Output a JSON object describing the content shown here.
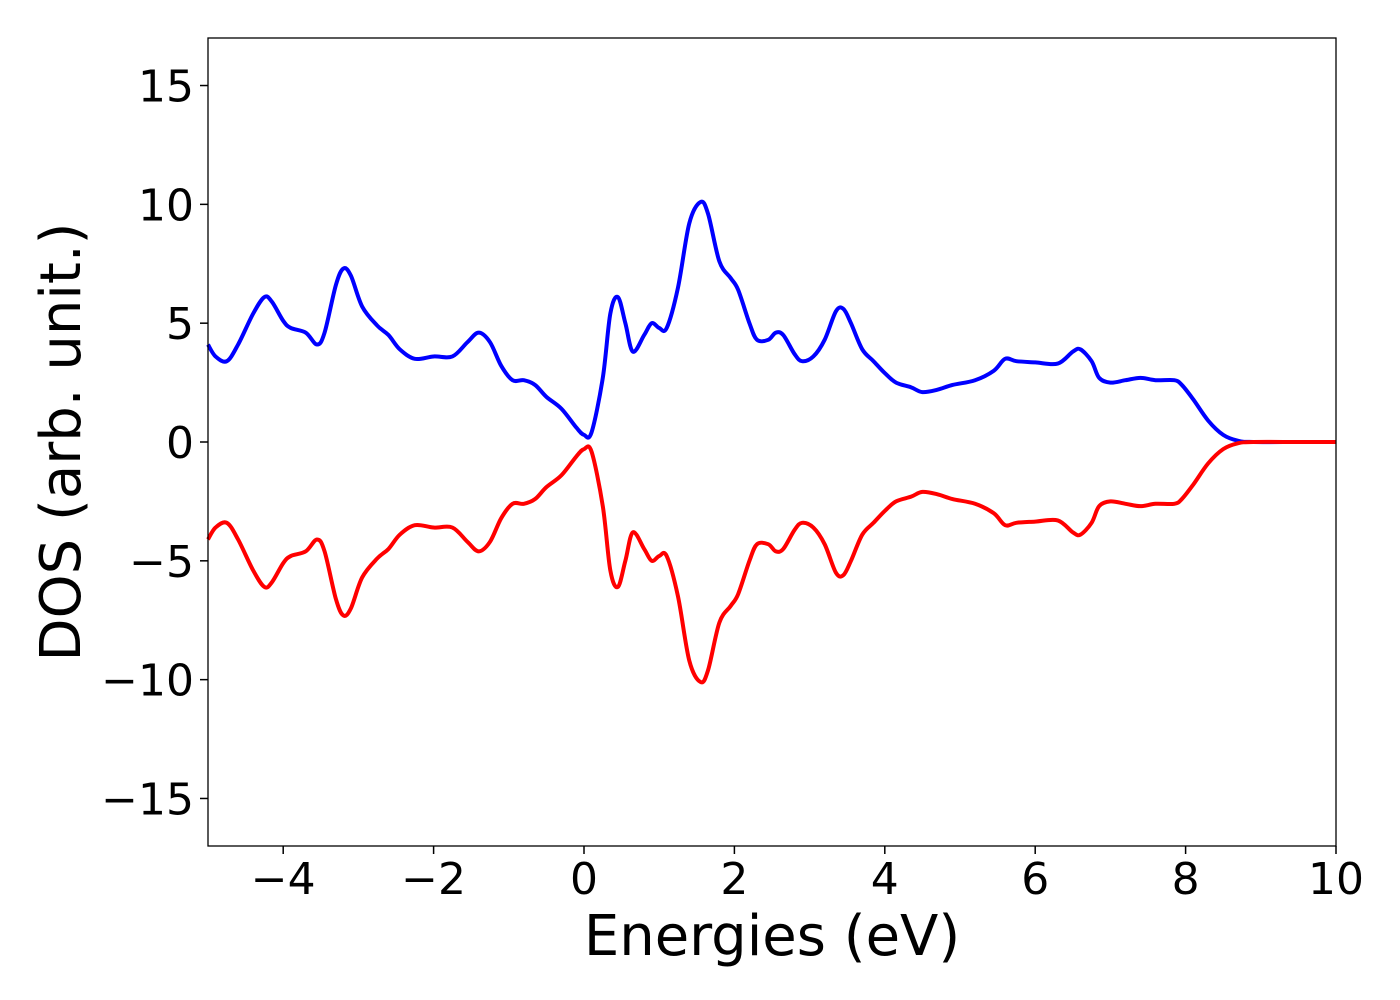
{
  "chart_data": {
    "type": "line",
    "title": "",
    "xlabel": "Energies (eV)",
    "ylabel": "DOS (arb. unit.)",
    "xlim": [
      -5,
      10
    ],
    "ylim": [
      -17,
      17
    ],
    "x_ticks": [
      -4,
      -2,
      0,
      2,
      4,
      6,
      8,
      10
    ],
    "y_ticks": [
      -15,
      -10,
      -5,
      0,
      5,
      10,
      15
    ],
    "x_tick_labels": [
      "−4",
      "−2",
      "0",
      "2",
      "4",
      "6",
      "8",
      "10"
    ],
    "y_tick_labels": [
      "−15",
      "−10",
      "−5",
      "0",
      "5",
      "10",
      "15"
    ],
    "grid": false,
    "legend": "none",
    "series": [
      {
        "color": "#0000ff",
        "points": [
          [
            -5.0,
            4.1
          ],
          [
            -4.9,
            3.6
          ],
          [
            -4.75,
            3.4
          ],
          [
            -4.6,
            4.1
          ],
          [
            -4.4,
            5.4
          ],
          [
            -4.25,
            6.1
          ],
          [
            -4.15,
            5.9
          ],
          [
            -4.0,
            5.1
          ],
          [
            -3.9,
            4.8
          ],
          [
            -3.7,
            4.6
          ],
          [
            -3.55,
            4.1
          ],
          [
            -3.45,
            4.6
          ],
          [
            -3.3,
            6.6
          ],
          [
            -3.2,
            7.3
          ],
          [
            -3.1,
            7.0
          ],
          [
            -2.95,
            5.7
          ],
          [
            -2.75,
            4.9
          ],
          [
            -2.6,
            4.5
          ],
          [
            -2.45,
            3.9
          ],
          [
            -2.25,
            3.5
          ],
          [
            -2.0,
            3.6
          ],
          [
            -1.75,
            3.6
          ],
          [
            -1.55,
            4.2
          ],
          [
            -1.4,
            4.6
          ],
          [
            -1.25,
            4.2
          ],
          [
            -1.1,
            3.2
          ],
          [
            -0.95,
            2.6
          ],
          [
            -0.8,
            2.6
          ],
          [
            -0.65,
            2.4
          ],
          [
            -0.5,
            1.9
          ],
          [
            -0.3,
            1.4
          ],
          [
            -0.1,
            0.6
          ],
          [
            0.0,
            0.3
          ],
          [
            0.1,
            0.4
          ],
          [
            0.25,
            2.7
          ],
          [
            0.35,
            5.4
          ],
          [
            0.45,
            6.1
          ],
          [
            0.55,
            5.0
          ],
          [
            0.65,
            3.8
          ],
          [
            0.8,
            4.5
          ],
          [
            0.9,
            5.0
          ],
          [
            1.0,
            4.8
          ],
          [
            1.1,
            4.8
          ],
          [
            1.25,
            6.5
          ],
          [
            1.4,
            9.2
          ],
          [
            1.55,
            10.1
          ],
          [
            1.65,
            9.6
          ],
          [
            1.8,
            7.6
          ],
          [
            1.95,
            6.9
          ],
          [
            2.05,
            6.4
          ],
          [
            2.2,
            5.0
          ],
          [
            2.3,
            4.3
          ],
          [
            2.45,
            4.3
          ],
          [
            2.55,
            4.6
          ],
          [
            2.65,
            4.5
          ],
          [
            2.8,
            3.7
          ],
          [
            2.9,
            3.4
          ],
          [
            3.05,
            3.6
          ],
          [
            3.2,
            4.3
          ],
          [
            3.35,
            5.5
          ],
          [
            3.45,
            5.6
          ],
          [
            3.55,
            5.0
          ],
          [
            3.7,
            3.9
          ],
          [
            3.85,
            3.4
          ],
          [
            4.0,
            2.9
          ],
          [
            4.15,
            2.5
          ],
          [
            4.35,
            2.3
          ],
          [
            4.5,
            2.1
          ],
          [
            4.7,
            2.2
          ],
          [
            4.9,
            2.4
          ],
          [
            5.2,
            2.6
          ],
          [
            5.45,
            3.0
          ],
          [
            5.6,
            3.5
          ],
          [
            5.75,
            3.4
          ],
          [
            6.0,
            3.35
          ],
          [
            6.3,
            3.3
          ],
          [
            6.5,
            3.8
          ],
          [
            6.6,
            3.9
          ],
          [
            6.75,
            3.4
          ],
          [
            6.85,
            2.7
          ],
          [
            7.0,
            2.5
          ],
          [
            7.2,
            2.6
          ],
          [
            7.4,
            2.7
          ],
          [
            7.6,
            2.6
          ],
          [
            7.85,
            2.6
          ],
          [
            7.95,
            2.4
          ],
          [
            8.1,
            1.8
          ],
          [
            8.3,
            0.9
          ],
          [
            8.5,
            0.3
          ],
          [
            8.7,
            0.05
          ],
          [
            8.9,
            0.0
          ],
          [
            9.5,
            0.0
          ],
          [
            10.0,
            0.0
          ]
        ]
      },
      {
        "color": "#ff0000",
        "points": [
          [
            -5.0,
            -4.1
          ],
          [
            -4.9,
            -3.6
          ],
          [
            -4.75,
            -3.4
          ],
          [
            -4.6,
            -4.1
          ],
          [
            -4.4,
            -5.4
          ],
          [
            -4.25,
            -6.1
          ],
          [
            -4.15,
            -5.9
          ],
          [
            -4.0,
            -5.1
          ],
          [
            -3.9,
            -4.8
          ],
          [
            -3.7,
            -4.6
          ],
          [
            -3.55,
            -4.1
          ],
          [
            -3.45,
            -4.6
          ],
          [
            -3.3,
            -6.6
          ],
          [
            -3.2,
            -7.3
          ],
          [
            -3.1,
            -7.0
          ],
          [
            -2.95,
            -5.7
          ],
          [
            -2.75,
            -4.9
          ],
          [
            -2.6,
            -4.5
          ],
          [
            -2.45,
            -3.9
          ],
          [
            -2.25,
            -3.5
          ],
          [
            -2.0,
            -3.6
          ],
          [
            -1.75,
            -3.6
          ],
          [
            -1.55,
            -4.2
          ],
          [
            -1.4,
            -4.6
          ],
          [
            -1.25,
            -4.2
          ],
          [
            -1.1,
            -3.2
          ],
          [
            -0.95,
            -2.6
          ],
          [
            -0.8,
            -2.6
          ],
          [
            -0.65,
            -2.4
          ],
          [
            -0.5,
            -1.9
          ],
          [
            -0.3,
            -1.4
          ],
          [
            -0.1,
            -0.6
          ],
          [
            0.0,
            -0.3
          ],
          [
            0.1,
            -0.4
          ],
          [
            0.25,
            -2.7
          ],
          [
            0.35,
            -5.4
          ],
          [
            0.45,
            -6.1
          ],
          [
            0.55,
            -5.0
          ],
          [
            0.65,
            -3.8
          ],
          [
            0.8,
            -4.5
          ],
          [
            0.9,
            -5.0
          ],
          [
            1.0,
            -4.8
          ],
          [
            1.1,
            -4.8
          ],
          [
            1.25,
            -6.5
          ],
          [
            1.4,
            -9.2
          ],
          [
            1.55,
            -10.1
          ],
          [
            1.65,
            -9.6
          ],
          [
            1.8,
            -7.6
          ],
          [
            1.95,
            -6.9
          ],
          [
            2.05,
            -6.4
          ],
          [
            2.2,
            -5.0
          ],
          [
            2.3,
            -4.3
          ],
          [
            2.45,
            -4.3
          ],
          [
            2.55,
            -4.6
          ],
          [
            2.65,
            -4.5
          ],
          [
            2.8,
            -3.7
          ],
          [
            2.9,
            -3.4
          ],
          [
            3.05,
            -3.6
          ],
          [
            3.2,
            -4.3
          ],
          [
            3.35,
            -5.5
          ],
          [
            3.45,
            -5.6
          ],
          [
            3.55,
            -5.0
          ],
          [
            3.7,
            -3.9
          ],
          [
            3.85,
            -3.4
          ],
          [
            4.0,
            -2.9
          ],
          [
            4.15,
            -2.5
          ],
          [
            4.35,
            -2.3
          ],
          [
            4.5,
            -2.1
          ],
          [
            4.7,
            -2.2
          ],
          [
            4.9,
            -2.4
          ],
          [
            5.2,
            -2.6
          ],
          [
            5.45,
            -3.0
          ],
          [
            5.6,
            -3.5
          ],
          [
            5.75,
            -3.4
          ],
          [
            6.0,
            -3.35
          ],
          [
            6.3,
            -3.3
          ],
          [
            6.5,
            -3.8
          ],
          [
            6.6,
            -3.9
          ],
          [
            6.75,
            -3.4
          ],
          [
            6.85,
            -2.7
          ],
          [
            7.0,
            -2.5
          ],
          [
            7.2,
            -2.6
          ],
          [
            7.4,
            -2.7
          ],
          [
            7.6,
            -2.6
          ],
          [
            7.85,
            -2.6
          ],
          [
            7.95,
            -2.4
          ],
          [
            8.1,
            -1.8
          ],
          [
            8.3,
            -0.9
          ],
          [
            8.5,
            -0.3
          ],
          [
            8.7,
            -0.05
          ],
          [
            8.9,
            0.0
          ],
          [
            9.5,
            0.0
          ],
          [
            10.0,
            0.0
          ]
        ]
      }
    ]
  }
}
